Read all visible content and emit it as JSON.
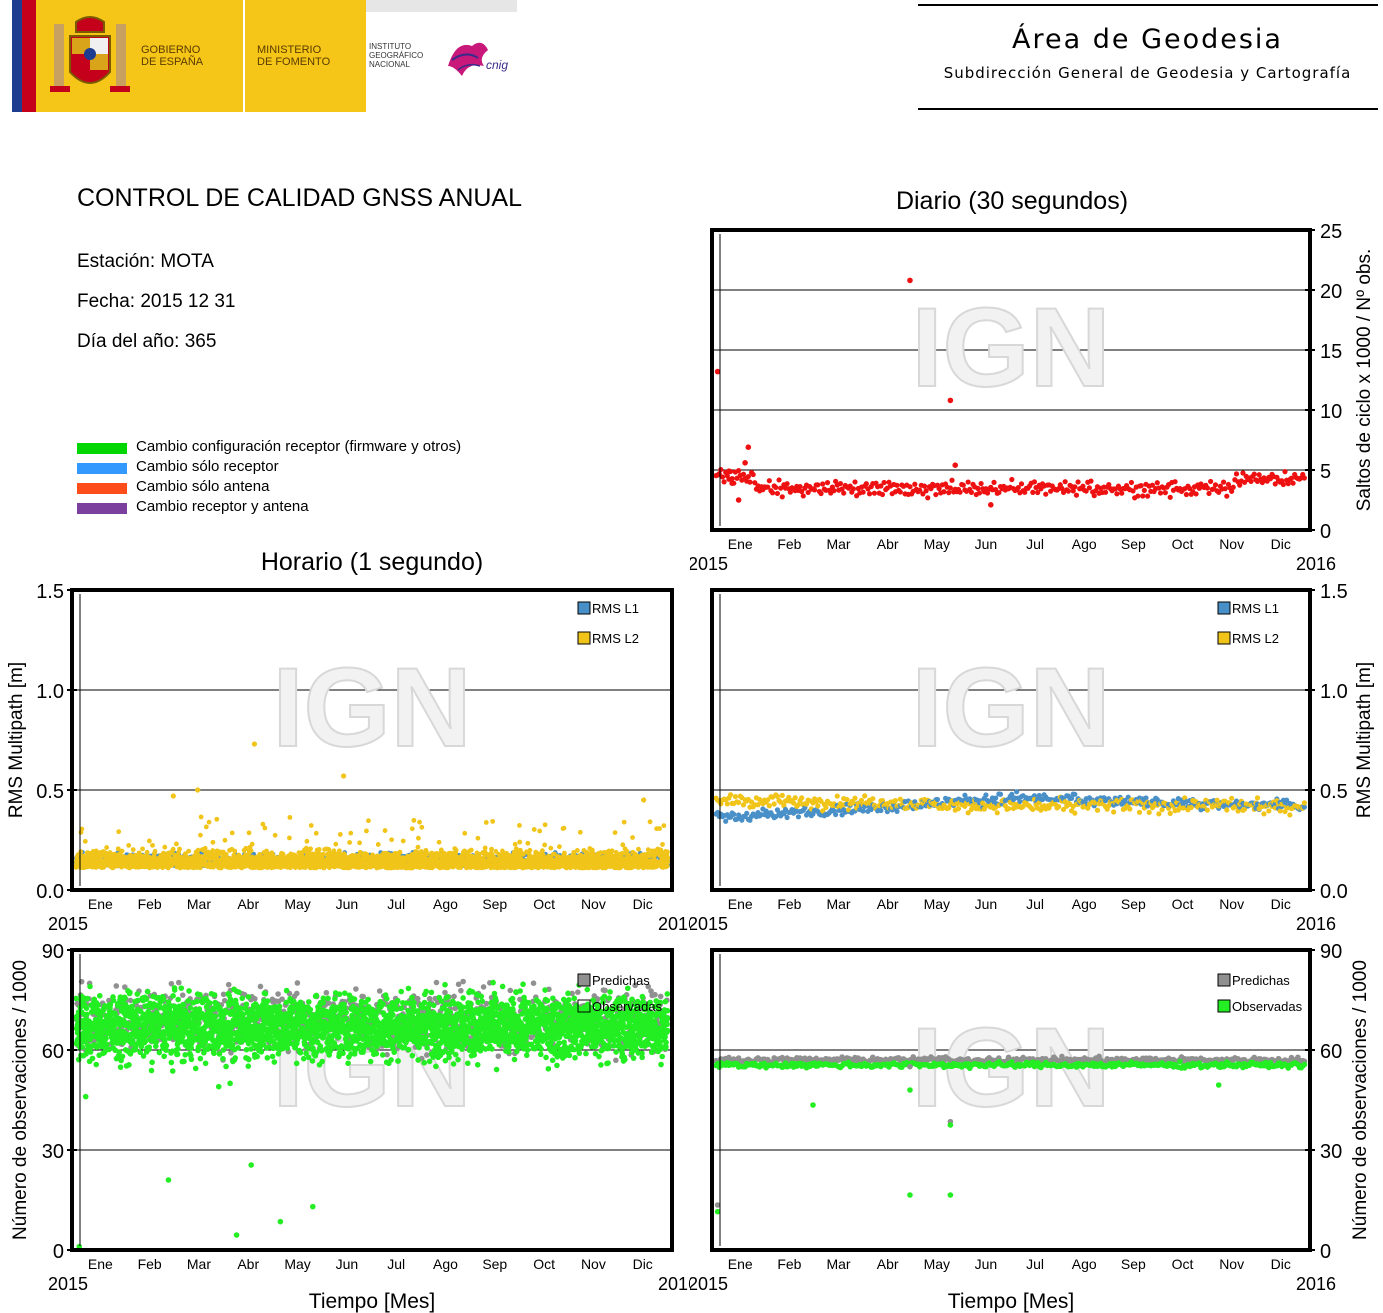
{
  "header": {
    "gobierno": "GOBIERNO\nDE ESPAÑA",
    "ministerio": "MINISTERIO\nDE FOMENTO",
    "instituto": "INSTITUTO\nGEOGRÁFICO\nNACIONAL",
    "cnig": "cnig",
    "area_title": "Área de Geodesia",
    "area_subtitle": "Subdirección General de Geodesia y Cartografía"
  },
  "info": {
    "title": "CONTROL DE CALIDAD GNSS ANUAL",
    "station": "Estación: MOTA",
    "date": "Fecha: 2015 12 31",
    "doy": "Día del año: 365"
  },
  "legend": [
    {
      "label": "Cambio configuración receptor (firmware y otros)",
      "color": "#00d600"
    },
    {
      "label": "Cambio sólo receptor",
      "color": "#3399ff"
    },
    {
      "label": "Cambio sólo antena",
      "color": "#ff4d1a"
    },
    {
      "label": "Cambio receptor y antena",
      "color": "#7b3f9e"
    }
  ],
  "colors": {
    "cycle_slips": "#ee1111",
    "rms_l1": "#4a90c8",
    "rms_l2": "#f0c419",
    "predichas": "#909090",
    "observadas": "#22ee22"
  },
  "watermark": "IGN",
  "axes_common": {
    "months": [
      "Ene",
      "Feb",
      "Mar",
      "Abr",
      "May",
      "Jun",
      "Jul",
      "Ago",
      "Sep",
      "Oct",
      "Nov",
      "Dic"
    ],
    "year_start": "2015",
    "year_end": "2016"
  },
  "chart_data": [
    {
      "id": "daily_cycle_slips",
      "type": "scatter",
      "title": "Diario (30 segundos)",
      "ylabel": "Saltos de ciclo x 1000 / Nº obs.",
      "ylim": [
        0,
        25
      ],
      "yticks": [
        0,
        5,
        10,
        15,
        20,
        25
      ],
      "grid": true,
      "series": [
        {
          "color": "#ee1111",
          "pattern": [
            3.5,
            3.3,
            3.6,
            3.9,
            3.4,
            3.1,
            3.7,
            3.5,
            3.2,
            3.8,
            3.4,
            3.0,
            3.6,
            3.3,
            3.9,
            3.5,
            3.2,
            3.7,
            3.4,
            3.1,
            3.6,
            3.3,
            3.8,
            3.5,
            3.0,
            3.4,
            3.7,
            3.2,
            3.6,
            3.3
          ],
          "outliers": [
            [
              1,
              13.2
            ],
            [
              8,
              4.9
            ],
            [
              10,
              3.9
            ],
            [
              14,
              2.5
            ],
            [
              18,
              5.6
            ],
            [
              20,
              6.9
            ],
            [
              120,
              20.8
            ],
            [
              145,
              10.8
            ],
            [
              148,
              5.4
            ],
            [
              170,
              2.1
            ]
          ]
        }
      ]
    },
    {
      "id": "hourly_multipath",
      "type": "scatter",
      "title": "Horario (1 segundo)",
      "ylabel": "RMS Multipath [m]",
      "ylim": [
        0,
        1.5
      ],
      "yticks": [
        0.0,
        0.5,
        1.0,
        1.5
      ],
      "grid": true,
      "series": [
        {
          "name": "RMS L1",
          "color": "#4a90c8",
          "base": 0.12,
          "spread": 0.1
        },
        {
          "name": "RMS L2",
          "color": "#f0c419",
          "base": 0.15,
          "spread": 0.12,
          "outliers": [
            [
              110,
              0.73
            ],
            [
              165,
              0.57
            ],
            [
              75,
              0.5
            ],
            [
              60,
              0.47
            ],
            [
              350,
              0.45
            ]
          ]
        }
      ]
    },
    {
      "id": "daily_multipath",
      "type": "scatter",
      "title": "",
      "ylabel": "RMS Multipath [m]",
      "ylim": [
        0,
        1.5
      ],
      "yticks": [
        0.0,
        0.5,
        1.0,
        1.5
      ],
      "grid": true,
      "series": [
        {
          "name": "RMS L1",
          "color": "#4a90c8",
          "start": 0.36,
          "end": 0.42,
          "mid": 0.46,
          "spread": 0.04
        },
        {
          "name": "RMS L2",
          "color": "#f0c419",
          "start": 0.45,
          "end": 0.42,
          "mid": 0.42,
          "spread": 0.05
        }
      ]
    },
    {
      "id": "hourly_observations",
      "type": "scatter",
      "title": "",
      "ylabel": "Número de observaciones / 1000",
      "xlabel": "Tiempo [Mes]",
      "ylim": [
        0,
        90
      ],
      "yticks": [
        0,
        30,
        60,
        90
      ],
      "grid": true,
      "series": [
        {
          "name": "Predichas",
          "color": "#909090",
          "base": 68,
          "spread": 14
        },
        {
          "name": "Observadas",
          "color": "#22ee22",
          "base": 67,
          "spread": 14,
          "outliers": [
            [
              2,
              1
            ],
            [
              6,
              46
            ],
            [
              57,
              21
            ],
            [
              99,
              4.5
            ],
            [
              108,
              25.5
            ],
            [
              126,
              8.5
            ],
            [
              146,
              13
            ],
            [
              88,
              49
            ],
            [
              95,
              50
            ]
          ]
        }
      ]
    },
    {
      "id": "daily_observations",
      "type": "scatter",
      "title": "",
      "ylabel": "Número de observaciones / 1000",
      "xlabel": "Tiempo [Mes]",
      "ylim": [
        0,
        90
      ],
      "yticks": [
        0,
        30,
        60,
        90
      ],
      "grid": true,
      "series": [
        {
          "name": "Predichas",
          "color": "#909090",
          "base": 57,
          "spread": 1.2,
          "outliers": [
            [
              1,
              13.5
            ],
            [
              120,
              55
            ],
            [
              145,
              38.5
            ]
          ]
        },
        {
          "name": "Observadas",
          "color": "#22ee22",
          "base": 55.5,
          "spread": 1.2,
          "outliers": [
            [
              1,
              11.5
            ],
            [
              60,
              43.5
            ],
            [
              120,
              48
            ],
            [
              120,
              16.5
            ],
            [
              145,
              16.5
            ],
            [
              145,
              37.5
            ],
            [
              311,
              49.5
            ]
          ]
        }
      ]
    }
  ]
}
